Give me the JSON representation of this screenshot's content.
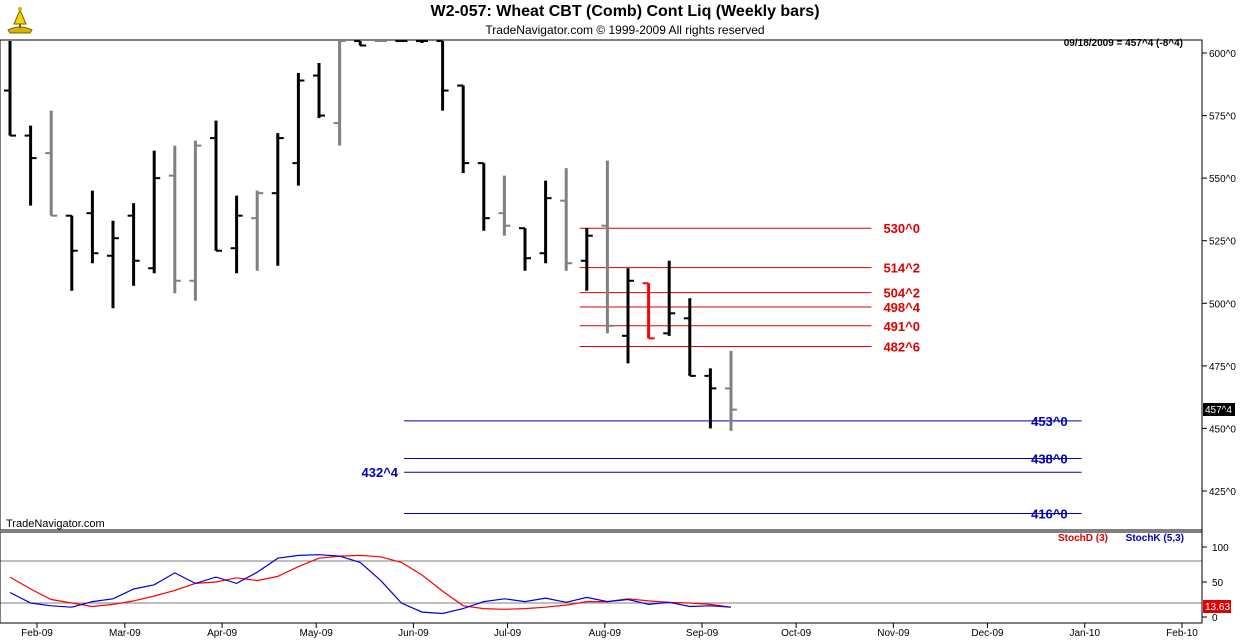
{
  "header": {
    "title": "W2-057:  Wheat CBT (Comb) Cont Liq  (Weekly bars)",
    "subtitle": "TradeNavigator.com © 1999-2009 All rights reserved",
    "logo_icon": "sextant-logo-icon"
  },
  "info": {
    "last_quote": "09/18/2009 = 457^4 (-8^4)",
    "watermark": "TradeNavigator.com",
    "price_tag": "457^4",
    "stoch_tag": "13.63"
  },
  "colors": {
    "bar_black": "#000000",
    "bar_gray": "#808080",
    "bar_red": "#ff0000",
    "resistance": "#dd0000",
    "support": "#0000bb",
    "stoch_d": "#ff0000",
    "stoch_k": "#0000dd"
  },
  "chart_data": [
    {
      "type": "ohlc",
      "ylim": [
        412,
        605
      ],
      "yticks": [
        {
          "v": 425,
          "label": "425^0"
        },
        {
          "v": 450,
          "label": "450^0"
        },
        {
          "v": 475,
          "label": "475^0"
        },
        {
          "v": 500,
          "label": "500^0"
        },
        {
          "v": 525,
          "label": "525^0"
        },
        {
          "v": 550,
          "label": "550^0"
        },
        {
          "v": 575,
          "label": "575^0"
        },
        {
          "v": 600,
          "label": "600^0"
        }
      ],
      "xticks": [
        "Feb-09",
        "Mar-09",
        "Apr-09",
        "May-09",
        "Jun-09",
        "Jul-09",
        "Aug-09",
        "Sep-09",
        "Oct-09",
        "Nov-09",
        "Dec-09",
        "Jan-10",
        "Feb-10"
      ],
      "bars": [
        {
          "d": "2009-01-02",
          "o": 585,
          "h": 605,
          "l": 567,
          "c": 567,
          "col": "black"
        },
        {
          "d": "2009-01-09",
          "o": 567,
          "h": 571,
          "l": 539,
          "c": 558,
          "col": "black"
        },
        {
          "d": "2009-01-16",
          "o": 560,
          "h": 577,
          "l": 535,
          "c": 535,
          "col": "gray"
        },
        {
          "d": "2009-01-23",
          "o": 535,
          "h": 535,
          "l": 505,
          "c": 521,
          "col": "black"
        },
        {
          "d": "2009-01-30",
          "o": 536,
          "h": 545,
          "l": 516,
          "c": 520,
          "col": "black"
        },
        {
          "d": "2009-02-06",
          "o": 519,
          "h": 533,
          "l": 498,
          "c": 526,
          "col": "black"
        },
        {
          "d": "2009-02-13",
          "o": 535,
          "h": 540,
          "l": 507,
          "c": 517,
          "col": "black"
        },
        {
          "d": "2009-02-20",
          "o": 514,
          "h": 561,
          "l": 512,
          "c": 550,
          "col": "black"
        },
        {
          "d": "2009-02-27",
          "o": 551,
          "h": 563,
          "l": 504,
          "c": 509,
          "col": "gray"
        },
        {
          "d": "2009-03-06",
          "o": 509,
          "h": 565,
          "l": 501,
          "c": 563,
          "col": "gray"
        },
        {
          "d": "2009-03-13",
          "o": 566,
          "h": 573,
          "l": 521,
          "c": 521,
          "col": "black"
        },
        {
          "d": "2009-03-20",
          "o": 522,
          "h": 543,
          "l": 512,
          "c": 535,
          "col": "black"
        },
        {
          "d": "2009-03-27",
          "o": 534,
          "h": 545,
          "l": 513,
          "c": 544,
          "col": "gray"
        },
        {
          "d": "2009-04-03",
          "o": 544,
          "h": 568,
          "l": 515,
          "c": 566,
          "col": "black"
        },
        {
          "d": "2009-04-10",
          "o": 556,
          "h": 592,
          "l": 547,
          "c": 589,
          "col": "black"
        },
        {
          "d": "2009-04-17",
          "o": 591,
          "h": 596,
          "l": 574,
          "c": 575,
          "col": "black"
        },
        {
          "d": "2009-04-24",
          "o": 572,
          "h": 605,
          "l": 563,
          "c": 605,
          "col": "gray"
        },
        {
          "d": "2009-05-01",
          "o": 605,
          "h": 605,
          "l": 603,
          "c": 603,
          "col": "black"
        },
        {
          "d": "2009-05-08",
          "o": 606,
          "h": 608,
          "l": 605,
          "c": 606,
          "col": "gray"
        },
        {
          "d": "2009-05-15",
          "o": 606,
          "h": 610,
          "l": 605,
          "c": 606,
          "col": "black"
        },
        {
          "d": "2009-05-22",
          "o": 607,
          "h": 612,
          "l": 604,
          "c": 606,
          "col": "black"
        },
        {
          "d": "2009-05-29",
          "o": 608,
          "h": 612,
          "l": 577,
          "c": 585,
          "col": "black"
        },
        {
          "d": "2009-06-05",
          "o": 587,
          "h": 587,
          "l": 552,
          "c": 556,
          "col": "black"
        },
        {
          "d": "2009-06-12",
          "o": 556,
          "h": 556,
          "l": 529,
          "c": 534,
          "col": "black"
        },
        {
          "d": "2009-06-19",
          "o": 536,
          "h": 551,
          "l": 527,
          "c": 531,
          "col": "gray"
        },
        {
          "d": "2009-06-26",
          "o": 530,
          "h": 530,
          "l": 513,
          "c": 518,
          "col": "black"
        },
        {
          "d": "2009-07-03",
          "o": 520,
          "h": 549,
          "l": 516,
          "c": 542,
          "col": "black"
        },
        {
          "d": "2009-07-10",
          "o": 541,
          "h": 554,
          "l": 513,
          "c": 516,
          "col": "gray"
        },
        {
          "d": "2009-07-17",
          "o": 517,
          "h": 530,
          "l": 505,
          "c": 527,
          "col": "black"
        },
        {
          "d": "2009-07-24",
          "o": 531,
          "h": 557,
          "l": 488,
          "c": 491,
          "col": "gray"
        },
        {
          "d": "2009-07-31",
          "o": 487,
          "h": 514,
          "l": 476,
          "c": 509,
          "col": "black"
        },
        {
          "d": "2009-08-07",
          "o": 508,
          "h": 508,
          "l": 486,
          "c": 486,
          "col": "red"
        },
        {
          "d": "2009-08-14",
          "o": 488,
          "h": 517,
          "l": 487,
          "c": 496,
          "col": "black"
        },
        {
          "d": "2009-08-21",
          "o": 494,
          "h": 502,
          "l": 471,
          "c": 471,
          "col": "black"
        },
        {
          "d": "2009-08-28",
          "o": 471,
          "h": 474,
          "l": 450,
          "c": 466,
          "col": "black"
        },
        {
          "d": "2009-09-04",
          "o": 466,
          "h": 481,
          "l": 449,
          "c": 457.5,
          "col": "gray"
        }
      ],
      "resistance_levels": [
        {
          "v": 530,
          "label": "530^0"
        },
        {
          "v": 514.25,
          "label": "514^2"
        },
        {
          "v": 504.25,
          "label": "504^2"
        },
        {
          "v": 498.5,
          "label": "498^4"
        },
        {
          "v": 491,
          "label": "491^0"
        },
        {
          "v": 482.75,
          "label": "482^6"
        }
      ],
      "support_levels": [
        {
          "v": 453,
          "label": "453^0",
          "label_side": "right",
          "start": "2009-05-29",
          "end": "2009-12-31"
        },
        {
          "v": 438,
          "label": "438^0",
          "label_side": "right",
          "start": "2009-05-29",
          "end": "2009-12-31"
        },
        {
          "v": 432.5,
          "label": "432^4",
          "label_side": "left",
          "start": "2009-05-29",
          "end": "2009-12-31"
        },
        {
          "v": 416,
          "label": "416^0",
          "label_side": "right",
          "start": "2009-05-29",
          "end": "2009-12-31"
        }
      ],
      "resistance_start": "2009-07-24",
      "resistance_end": "2009-10-25"
    },
    {
      "type": "line",
      "ylim": [
        0,
        110
      ],
      "yticks": [
        0,
        50,
        100
      ],
      "reference_lines": [
        20,
        80
      ],
      "legend": [
        "StochD (3)",
        "StochK (5,3)"
      ],
      "series": [
        {
          "name": "StochD (3)",
          "color": "red",
          "values": [
            57,
            40,
            25,
            20,
            15,
            18,
            23,
            30,
            38,
            48,
            50,
            56,
            52,
            58,
            72,
            84,
            87,
            88,
            86,
            78,
            60,
            37,
            16,
            12,
            11,
            12,
            14,
            17,
            22,
            22,
            26,
            23,
            21,
            20,
            18,
            14
          ]
        },
        {
          "name": "StochK (5,3)",
          "color": "blue",
          "values": [
            35,
            20,
            16,
            14,
            22,
            26,
            40,
            46,
            63,
            48,
            57,
            48,
            64,
            84,
            88,
            89,
            87,
            78,
            52,
            20,
            7,
            5,
            12,
            22,
            26,
            22,
            27,
            21,
            28,
            22,
            25,
            18,
            21,
            15,
            16,
            14
          ]
        }
      ]
    }
  ]
}
